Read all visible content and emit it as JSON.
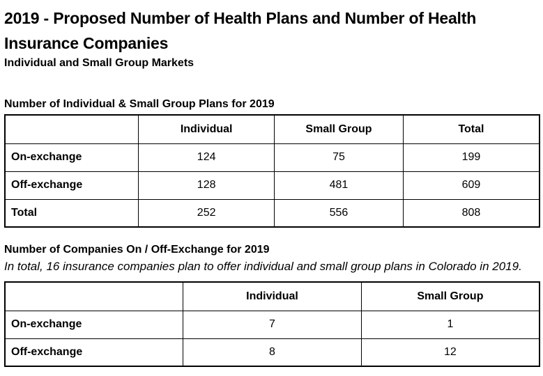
{
  "title": "2019 - Proposed Number of Health Plans and Number of Health Insurance Companies",
  "subtitle": "Individual and Small Group Markets",
  "colors": {
    "text": "#000000",
    "background": "#ffffff",
    "table_border": "#000000"
  },
  "plans_section": {
    "heading": "Number of Individual & Small Group Plans for 2019",
    "table": {
      "columns": [
        "",
        "Individual",
        "Small Group",
        "Total"
      ],
      "rows": [
        {
          "label": "On-exchange",
          "values": [
            "124",
            "75",
            "199"
          ]
        },
        {
          "label": "Off-exchange",
          "values": [
            "128",
            "481",
            "609"
          ]
        },
        {
          "label": "Total",
          "values": [
            "252",
            "556",
            "808"
          ]
        }
      ]
    }
  },
  "companies_section": {
    "heading": "Number of Companies On / Off-Exchange for 2019",
    "note": "In total, 16 insurance companies plan to offer individual and small group plans in Colorado in 2019.",
    "table": {
      "columns": [
        "",
        "Individual",
        "Small Group"
      ],
      "rows": [
        {
          "label": "On-exchange",
          "values": [
            "7",
            "1"
          ]
        },
        {
          "label": "Off-exchange",
          "values": [
            "8",
            "12"
          ]
        }
      ]
    }
  }
}
